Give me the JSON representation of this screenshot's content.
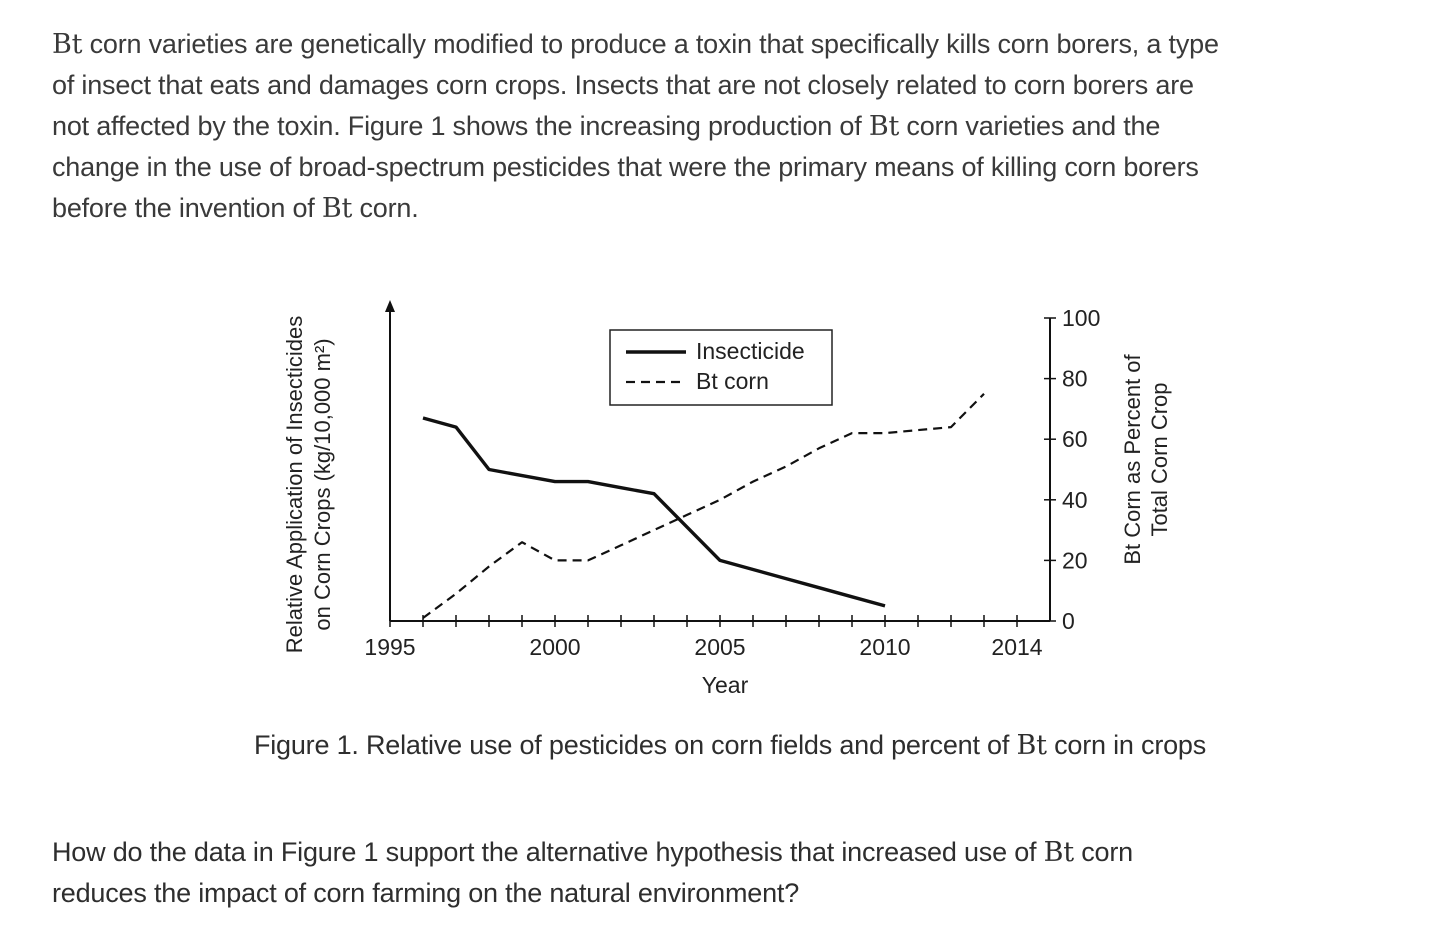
{
  "intro": {
    "lines": [
      {
        "parts": [
          {
            "t": "Bt",
            "serif": true
          },
          {
            "t": " corn varieties are genetically modified to produce a toxin that specifically kills corn borers, a type"
          }
        ]
      },
      {
        "parts": [
          {
            "t": "of insect that eats and damages corn crops. Insects that are not closely related to corn borers are"
          }
        ]
      },
      {
        "parts": [
          {
            "t": "not affected by the toxin. Figure 1 shows the increasing production of "
          },
          {
            "t": "Bt",
            "serif": true
          },
          {
            "t": " corn varieties and the"
          }
        ]
      },
      {
        "parts": [
          {
            "t": "change in the use of broad-spectrum pesticides that were the primary means of killing corn borers"
          }
        ]
      },
      {
        "parts": [
          {
            "t": "before the invention of "
          },
          {
            "t": "Bt",
            "serif": true
          },
          {
            "t": " corn."
          }
        ]
      }
    ]
  },
  "chart_data": {
    "type": "line",
    "title": "Figure 1. Relative use of pesticides on corn fields and percent of Bt corn in crops",
    "xlabel": "Year",
    "ylabel_left": [
      "Relative Application of Insecticides",
      "on Corn Crops (kg/10,000 m²)"
    ],
    "ylabel_right": [
      "Bt Corn as Percent of",
      "Total Corn Crop"
    ],
    "xlim": [
      1995,
      2015
    ],
    "x_tick_labels": [
      "1995",
      "2000",
      "2005",
      "2010",
      "2014"
    ],
    "x_tick_label_values": [
      1995,
      2000,
      2005,
      2010,
      2014
    ],
    "x_minor_ticks": [
      1995,
      1996,
      1997,
      1998,
      1999,
      2000,
      2001,
      2002,
      2003,
      2004,
      2005,
      2006,
      2007,
      2008,
      2009,
      2010,
      2011,
      2012,
      2013,
      2014
    ],
    "ylim_right": [
      0,
      100
    ],
    "y_right_ticks": [
      0,
      20,
      40,
      60,
      80,
      100
    ],
    "y_right_tick_labels": [
      "0",
      "20",
      "40",
      "60",
      "80",
      "100"
    ],
    "legend": {
      "position": "top-center",
      "entries": [
        "Insecticide",
        "Bt corn"
      ]
    },
    "series": [
      {
        "name": "Insecticide",
        "axis": "left",
        "style": "solid",
        "x": [
          1996,
          1997,
          1998,
          1999,
          2000,
          2001,
          2002,
          2003,
          2004,
          2005,
          2006,
          2007,
          2008,
          2009,
          2010
        ],
        "values": [
          67,
          64,
          50,
          48,
          46,
          46,
          44,
          42,
          31,
          20,
          17,
          14,
          11,
          8,
          5
        ]
      },
      {
        "name": "Bt corn",
        "axis": "right",
        "style": "dashed",
        "x": [
          1996,
          1997,
          1998,
          1999,
          2000,
          2001,
          2002,
          2003,
          2004,
          2005,
          2006,
          2007,
          2008,
          2009,
          2010,
          2011,
          2012,
          2013
        ],
        "values": [
          1,
          9,
          18,
          26,
          20,
          20,
          25,
          30,
          35,
          40,
          46,
          51,
          57,
          62,
          62,
          63,
          64,
          75
        ]
      }
    ]
  },
  "question": {
    "lines": [
      {
        "parts": [
          {
            "t": "How do the data in Figure 1 support the alternative hypothesis that increased use of "
          },
          {
            "t": "Bt",
            "serif": true
          },
          {
            "t": " corn"
          }
        ]
      },
      {
        "parts": [
          {
            "t": "reduces the impact of corn farming on the natural environment?"
          }
        ]
      }
    ]
  }
}
